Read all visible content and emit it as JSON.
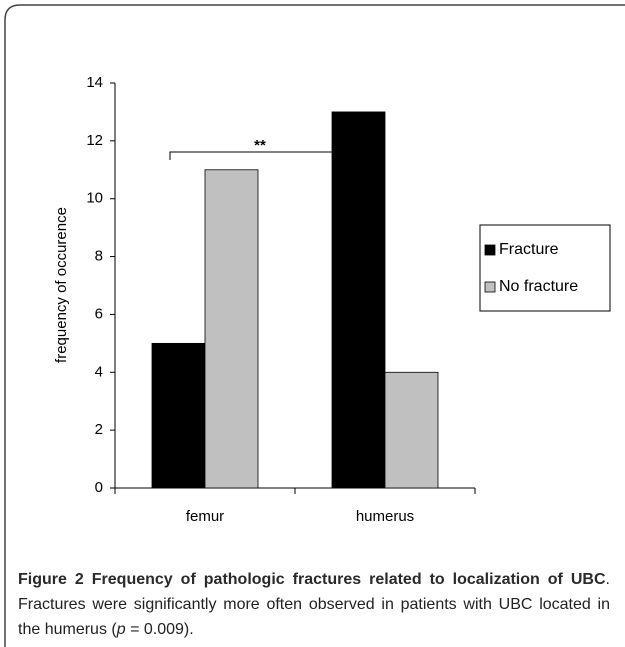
{
  "chart_data": {
    "type": "bar",
    "y_label": "frequency of occurence",
    "categories": [
      "femur",
      "humerus"
    ],
    "series": [
      {
        "name": "Fracture",
        "color": "#000000",
        "values": [
          5,
          13
        ]
      },
      {
        "name": "No fracture",
        "color": "#c0c0c0",
        "values": [
          11,
          4
        ]
      }
    ],
    "ylim": [
      0,
      14
    ],
    "yticks": [
      0,
      2,
      4,
      6,
      8,
      10,
      12,
      14
    ],
    "annotation": "**",
    "legend": "right"
  },
  "caption": {
    "label": "Figure 2",
    "title": "Frequency of pathologic fractures related to localization of UBC",
    "text_before": ". Fractures were significantly more often observed in patients with UBC located in the humerus (",
    "italic": "p",
    "text_after": " = 0.009)."
  }
}
